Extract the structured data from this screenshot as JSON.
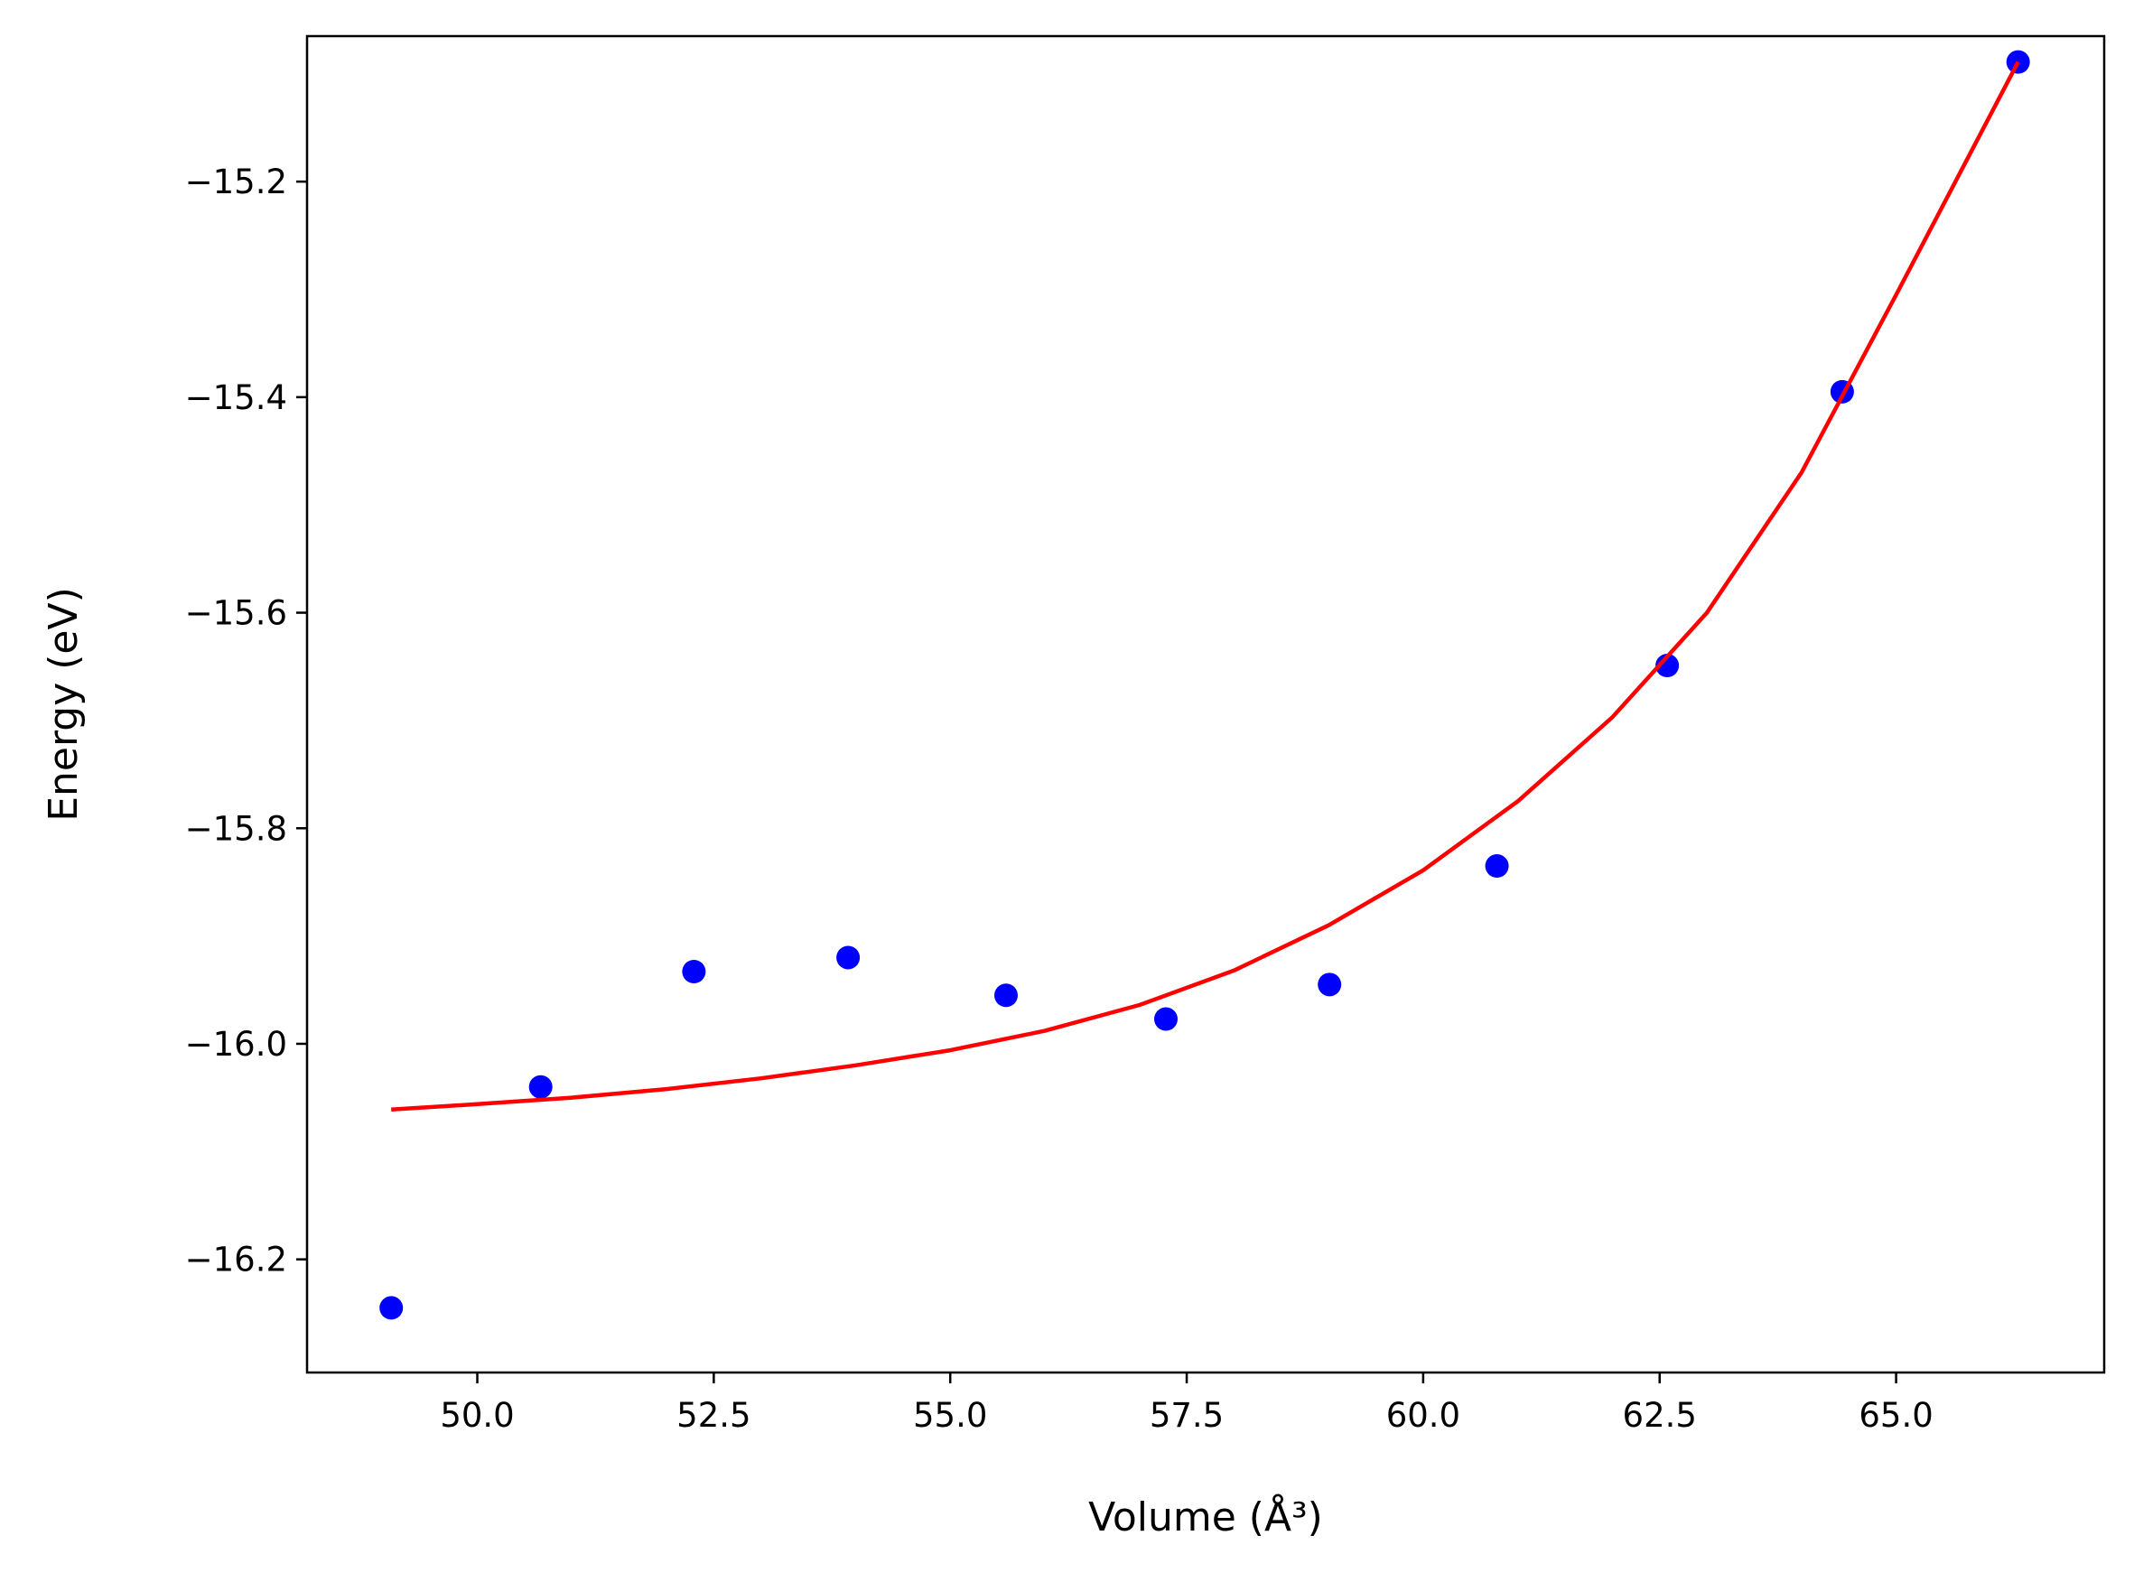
{
  "chart_data": {
    "type": "scatter",
    "xlabel": "Volume (Å³)",
    "ylabel": "Energy (eV)",
    "xlim": [
      48.2,
      67.2
    ],
    "ylim": [
      -16.305,
      -15.065
    ],
    "x_ticks": [
      50.0,
      52.5,
      55.0,
      57.5,
      60.0,
      62.5,
      65.0
    ],
    "x_tick_labels": [
      "50.0",
      "52.5",
      "55.0",
      "57.5",
      "60.0",
      "62.5",
      "65.0"
    ],
    "y_ticks": [
      -15.2,
      -15.4,
      -15.6,
      -15.8,
      -16.0,
      -16.2
    ],
    "y_tick_labels": [
      "−15.2",
      "−15.4",
      "−15.6",
      "−15.8",
      "−16.0",
      "−16.2"
    ],
    "grid": false,
    "series": [
      {
        "kind": "scatter",
        "color": "#0000ff",
        "x": [
          49.09,
          50.67,
          52.29,
          53.92,
          55.59,
          57.28,
          59.01,
          60.78,
          62.58,
          64.43,
          66.29
        ],
        "y": [
          -16.245,
          -16.04,
          -15.933,
          -15.92,
          -15.955,
          -15.977,
          -15.945,
          -15.835,
          -15.649,
          -15.395,
          -15.089
        ]
      },
      {
        "kind": "line",
        "color": "#ff0000",
        "x": [
          49.09,
          50.0,
          51.0,
          52.0,
          53.0,
          54.0,
          55.0,
          56.0,
          57.0,
          58.0,
          59.0,
          60.0,
          61.0,
          62.0,
          63.0,
          64.0,
          65.0,
          66.29
        ],
        "y": [
          -16.061,
          -16.056,
          -16.05,
          -16.042,
          -16.032,
          -16.02,
          -16.006,
          -15.988,
          -15.964,
          -15.932,
          -15.89,
          -15.839,
          -15.775,
          -15.697,
          -15.6,
          -15.47,
          -15.305,
          -15.089
        ]
      }
    ]
  }
}
